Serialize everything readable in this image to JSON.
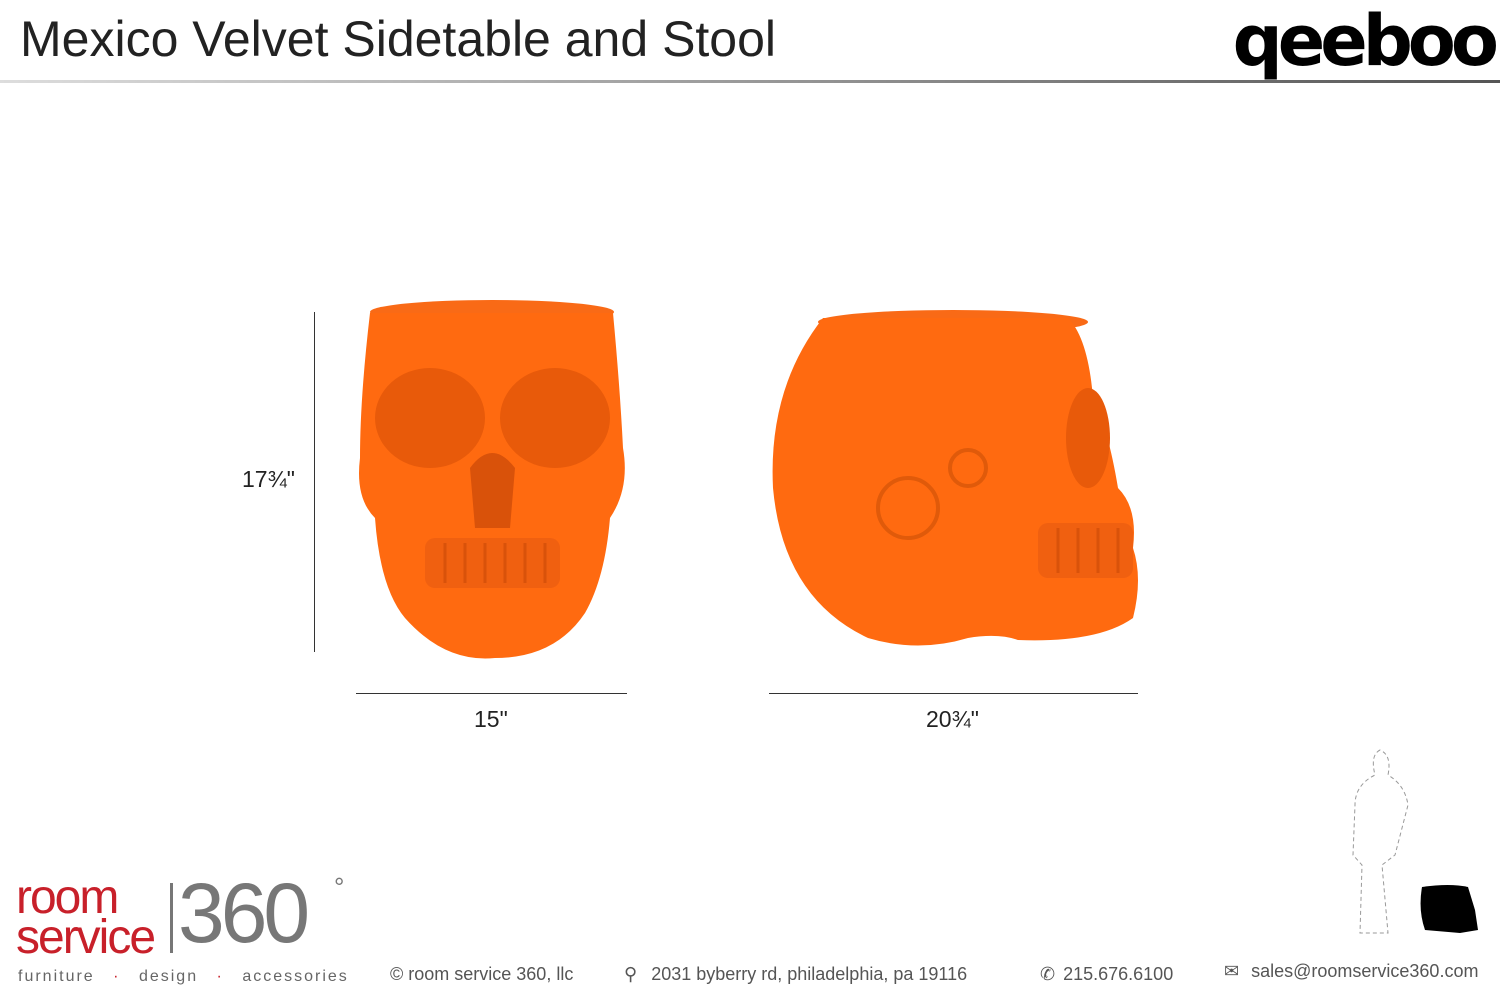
{
  "header": {
    "title": "Mexico Velvet Sidetable and Stool",
    "brand": "qeeboo"
  },
  "product": {
    "color": "#ff6a10",
    "dimensions": {
      "height": "17¾\"",
      "width": "15\"",
      "depth": "20¾\""
    }
  },
  "footer": {
    "logo": {
      "line1": "room",
      "line2": "service",
      "number": "360",
      "degree": "°",
      "tagline": [
        "furniture",
        "design",
        "accessories"
      ],
      "red": "#c8202a",
      "gray": "#777777"
    },
    "copyright": "© room service 360, llc",
    "address": "2031 byberry rd, philadelphia, pa 19116",
    "phone": "215.676.6100",
    "email": "sales@roomservice360.com"
  }
}
